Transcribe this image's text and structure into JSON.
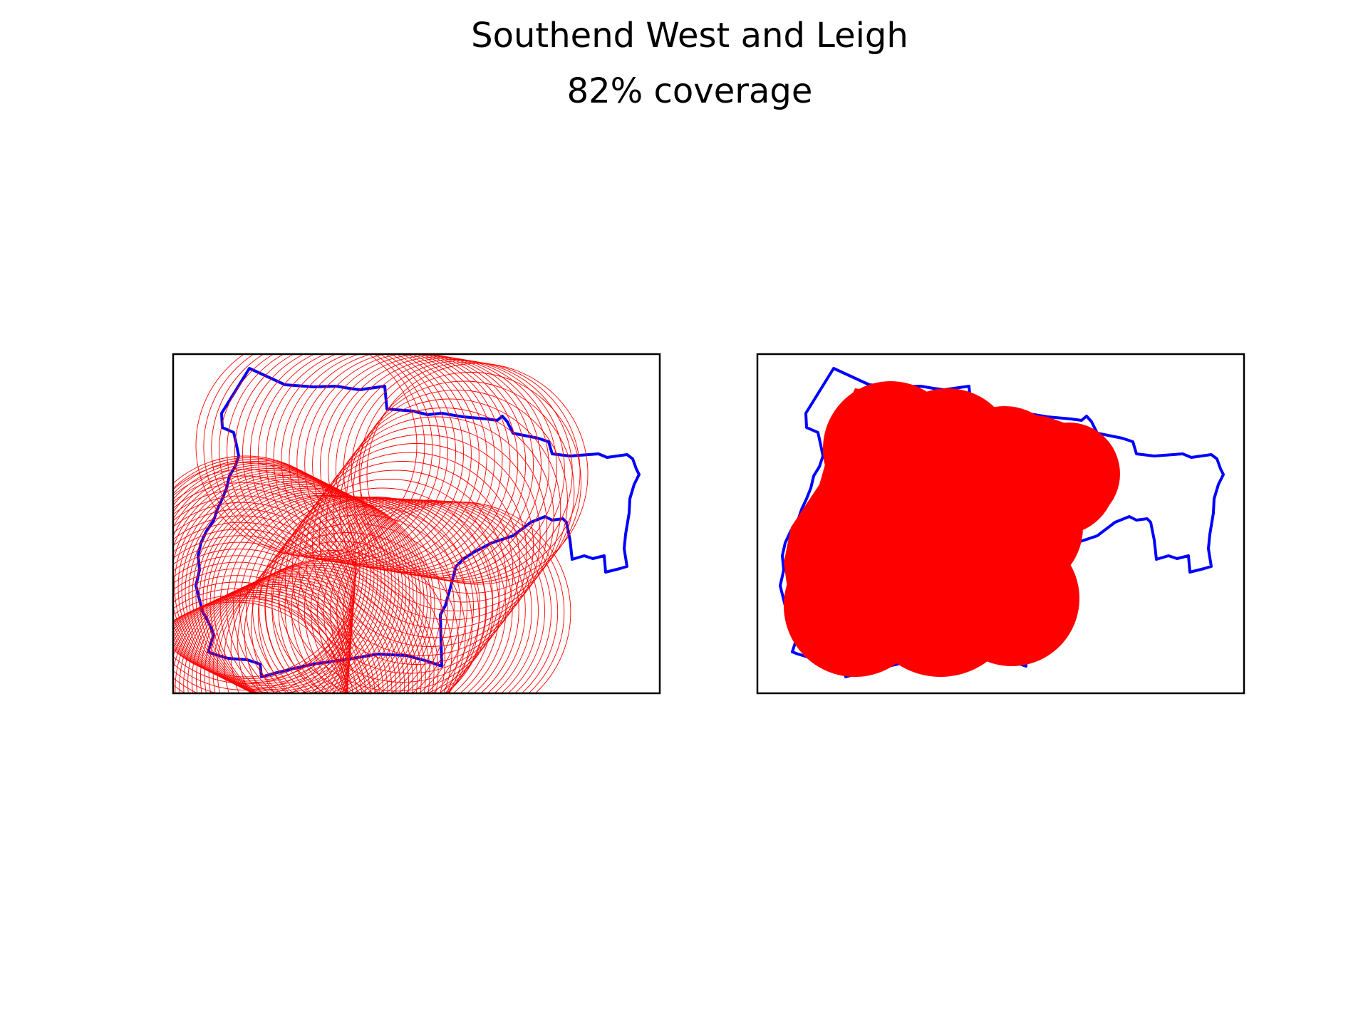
{
  "figure": {
    "title": "Southend West and Leigh",
    "subtitle": "82% coverage"
  },
  "colors": {
    "boundary": "#0000ff",
    "coverage": "#ff0000",
    "frame": "#000000",
    "background": "#ffffff"
  },
  "chart_data": [
    {
      "type": "map",
      "panel": "left",
      "style": "circle-outlines",
      "title": "",
      "xlabel": "",
      "ylabel": "",
      "ticks": false,
      "grid": false,
      "coverage_pct": 82,
      "path_keypoints": [
        [
          430,
          625
        ],
        [
          670,
          665
        ],
        [
          460,
          940
        ],
        [
          330,
          1000
        ],
        [
          345,
          795
        ],
        [
          455,
          850
        ],
        [
          655,
          860
        ]
      ],
      "circle_radius": 155
    },
    {
      "type": "map",
      "panel": "right",
      "style": "filled-union",
      "title": "",
      "xlabel": "",
      "ylabel": "",
      "ticks": false,
      "grid": false,
      "coverage_pct": 82
    }
  ]
}
